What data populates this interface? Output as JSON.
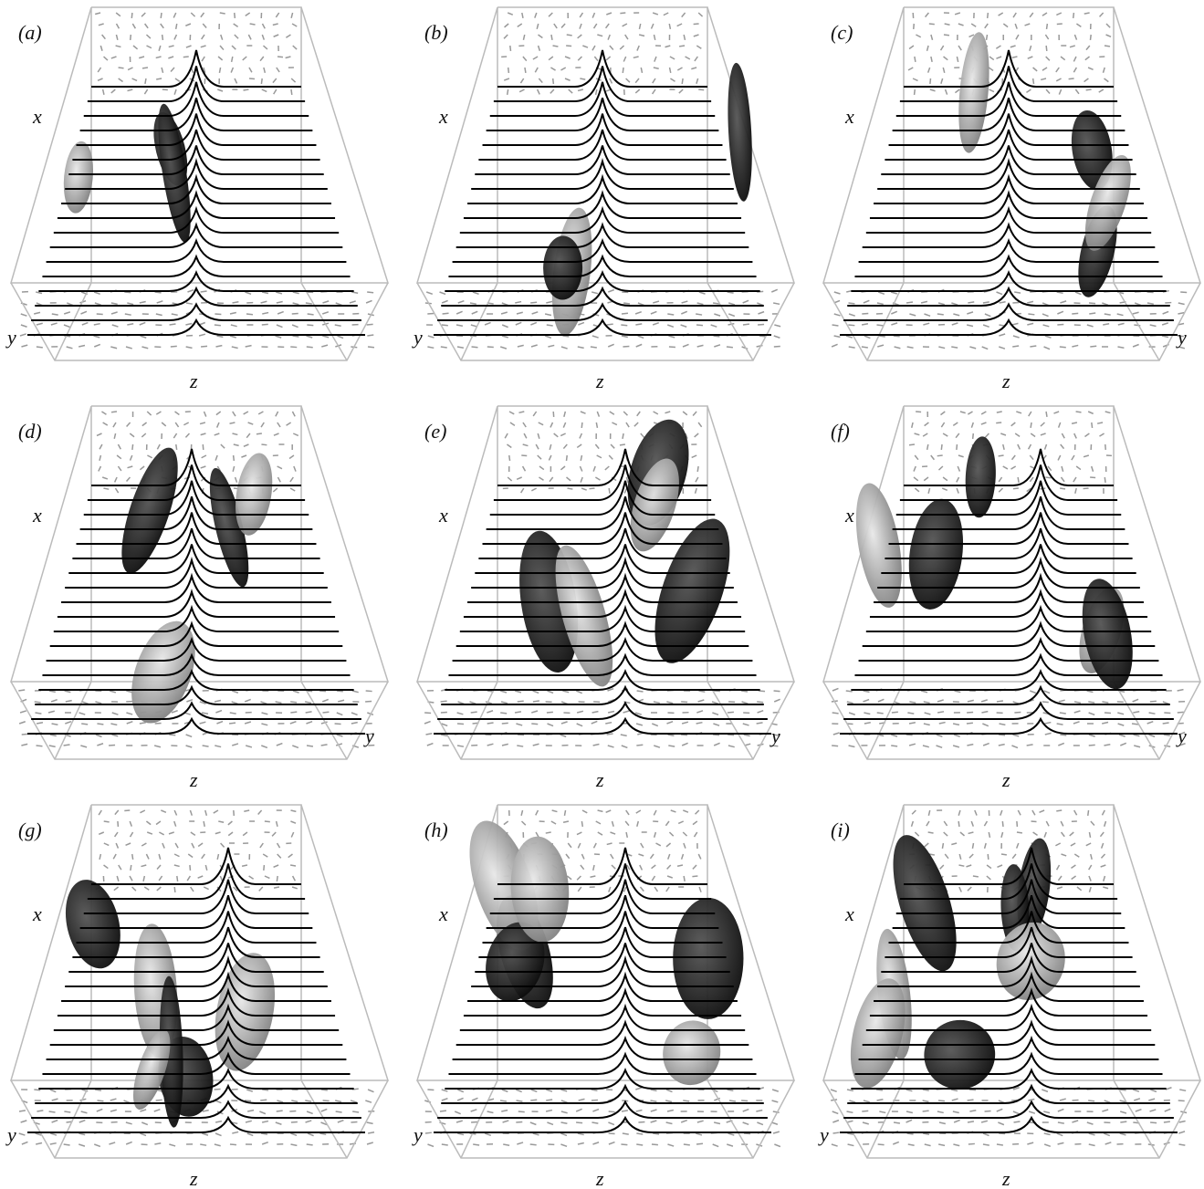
{
  "panels": [
    {
      "label": "(a)",
      "x_label": "x",
      "y_label": "y",
      "z_label": "z"
    },
    {
      "label": "(b)",
      "x_label": "x",
      "y_label": "y",
      "z_label": "z"
    },
    {
      "label": "(c)",
      "x_label": "x",
      "y_label": "y",
      "z_label": "z"
    },
    {
      "label": "(d)",
      "x_label": "x",
      "y_label": "y",
      "z_label": "z"
    },
    {
      "label": "(e)",
      "x_label": "x",
      "y_label": "y",
      "z_label": "z"
    },
    {
      "label": "(f)",
      "x_label": "x",
      "y_label": "y",
      "z_label": "z"
    },
    {
      "label": "(g)",
      "x_label": "x",
      "y_label": "y",
      "z_label": "z"
    },
    {
      "label": "(h)",
      "x_label": "x",
      "y_label": "y",
      "z_label": "z"
    },
    {
      "label": "(i)",
      "x_label": "x",
      "y_label": "y",
      "z_label": "z"
    }
  ]
}
